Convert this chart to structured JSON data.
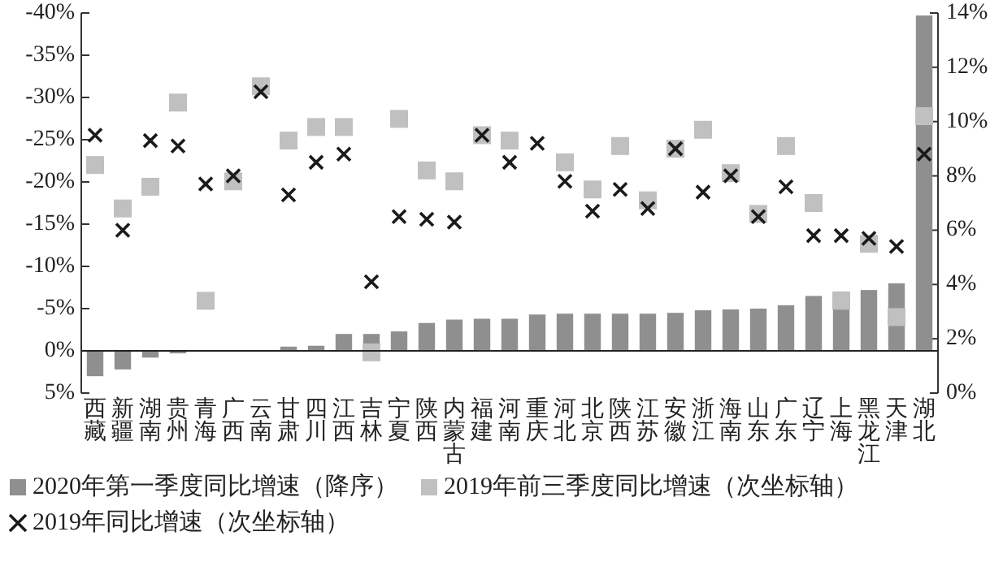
{
  "chart_data": {
    "type": "bar",
    "categories": [
      "西藏",
      "新疆",
      "湖南",
      "贵州",
      "青海",
      "广西",
      "云南",
      "甘肃",
      "四川",
      "江西",
      "吉林",
      "宁夏",
      "陕西",
      "内蒙古",
      "福建",
      "河南",
      "重庆",
      "河北",
      "北京",
      "陕西",
      "江苏",
      "安徽",
      "浙江",
      "海南",
      "山东",
      "广东",
      "辽宁",
      "上海",
      "黑龙江",
      "天津",
      "湖北"
    ],
    "series": [
      {
        "name": "2020年第一季度同比增速（降序）",
        "color": "#8f8f8f",
        "values": [
          3.0,
          2.2,
          0.8,
          0.3,
          0,
          0,
          0,
          -0.5,
          -0.6,
          -2.0,
          -2.0,
          -2.3,
          -3.3,
          -3.7,
          -3.8,
          -3.8,
          -4.3,
          -4.4,
          -4.4,
          -4.4,
          -4.4,
          -4.5,
          -4.8,
          -4.9,
          -5.0,
          -5.4,
          -6.5,
          -7.0,
          -7.2,
          -8.0,
          -39.7
        ]
      },
      {
        "name": "2019年前三季度同比增速（次坐标轴）",
        "type": "scatter",
        "axis": "y2",
        "marker": "square",
        "color": "#c0c0c0",
        "values": [
          8.4,
          6.8,
          7.6,
          10.7,
          3.4,
          7.8,
          11.3,
          9.3,
          9.8,
          9.8,
          1.5,
          10.1,
          8.2,
          7.8,
          9.5,
          9.3,
          null,
          8.5,
          7.5,
          9.1,
          7.1,
          9.0,
          9.7,
          8.1,
          6.6,
          9.1,
          7.0,
          3.4,
          5.5,
          2.8,
          10.2
        ]
      },
      {
        "name": "2019年同比增速（次坐标轴）",
        "type": "scatter",
        "axis": "y2",
        "marker": "cross",
        "color": "#1a1a1a",
        "values": [
          9.5,
          6.0,
          9.3,
          9.1,
          7.7,
          8.0,
          11.1,
          7.3,
          8.5,
          8.8,
          4.1,
          6.5,
          6.4,
          6.3,
          9.5,
          8.5,
          9.2,
          7.8,
          6.7,
          7.5,
          6.8,
          9.0,
          7.4,
          8.0,
          6.5,
          7.6,
          5.8,
          5.8,
          5.7,
          5.4,
          8.8
        ]
      }
    ],
    "ylim": [
      5,
      -40
    ],
    "yticks": [
      {
        "value": -40,
        "label": "-40%"
      },
      {
        "value": -35,
        "label": "-35%"
      },
      {
        "value": -30,
        "label": "-30%"
      },
      {
        "value": -25,
        "label": "-25%"
      },
      {
        "value": -20,
        "label": "-20%"
      },
      {
        "value": -15,
        "label": "-15%"
      },
      {
        "value": -10,
        "label": "-10%"
      },
      {
        "value": -5,
        "label": "-5%"
      },
      {
        "value": 0,
        "label": "0%"
      },
      {
        "value": 5,
        "label": "5%"
      }
    ],
    "y2lim": [
      0,
      14
    ],
    "y2ticks": [
      {
        "value": 0,
        "label": "0%"
      },
      {
        "value": 2,
        "label": "2%"
      },
      {
        "value": 4,
        "label": "4%"
      },
      {
        "value": 6,
        "label": "6%"
      },
      {
        "value": 8,
        "label": "8%"
      },
      {
        "value": 10,
        "label": "10%"
      },
      {
        "value": 12,
        "label": "12%"
      },
      {
        "value": 14,
        "label": "14%"
      }
    ],
    "legend": "bottom"
  }
}
